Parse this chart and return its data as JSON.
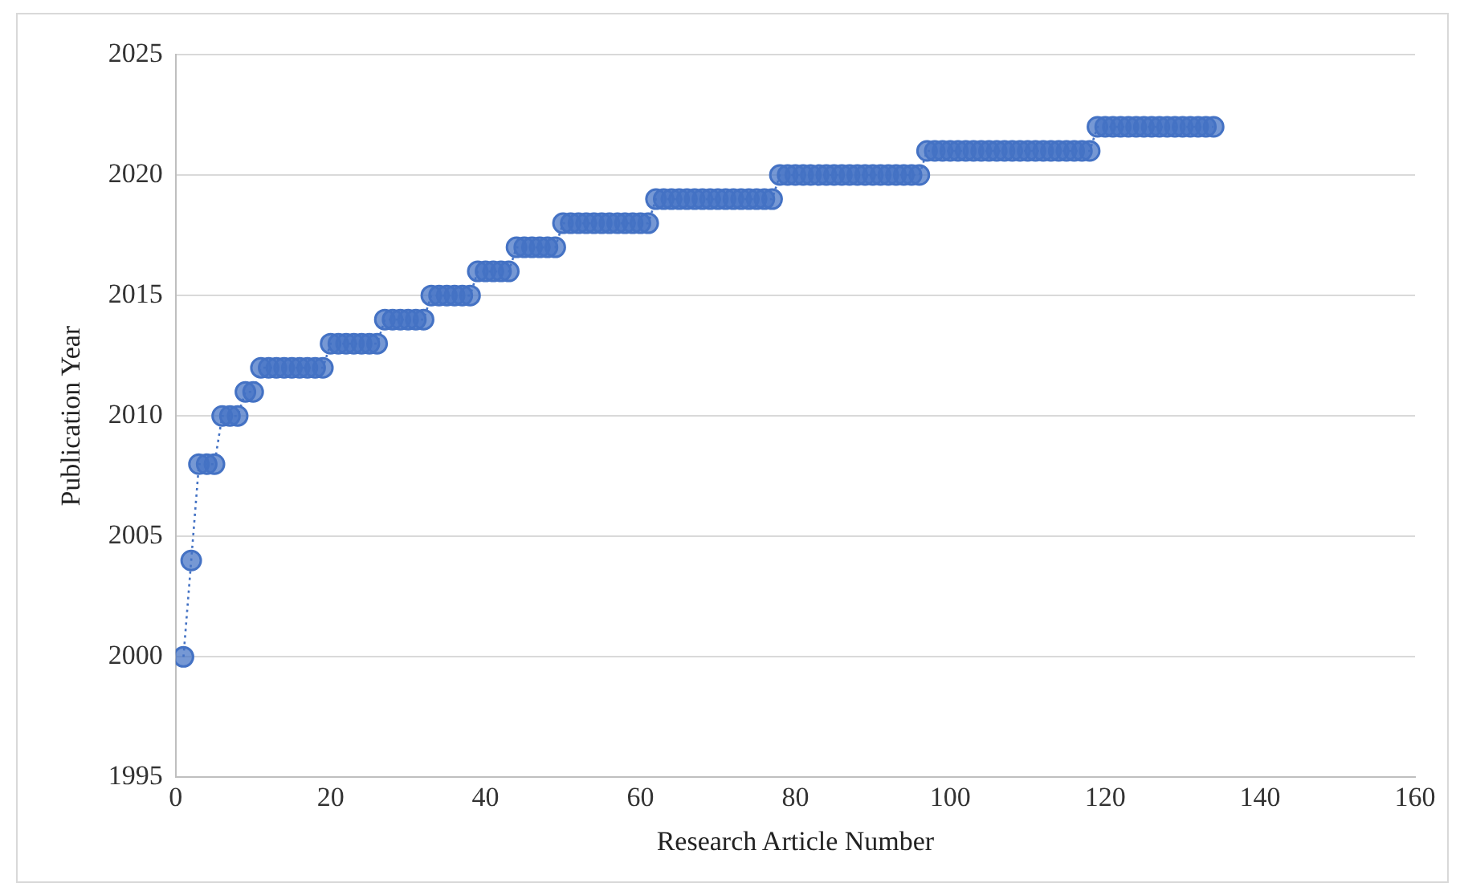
{
  "chart_data": {
    "type": "line",
    "xlabel": "Research Article Number",
    "ylabel": "Publication Year",
    "x": [
      1,
      2,
      3,
      4,
      5,
      6,
      7,
      8,
      9,
      10,
      11,
      12,
      13,
      14,
      15,
      16,
      17,
      18,
      19,
      20,
      21,
      22,
      23,
      24,
      25,
      26,
      27,
      28,
      29,
      30,
      31,
      32,
      33,
      34,
      35,
      36,
      37,
      38,
      39,
      40,
      41,
      42,
      43,
      44,
      45,
      46,
      47,
      48,
      49,
      50,
      51,
      52,
      53,
      54,
      55,
      56,
      57,
      58,
      59,
      60,
      61,
      62,
      63,
      64,
      65,
      66,
      67,
      68,
      69,
      70,
      71,
      72,
      73,
      74,
      75,
      76,
      77,
      78,
      79,
      80,
      81,
      82,
      83,
      84,
      85,
      86,
      87,
      88,
      89,
      90,
      91,
      92,
      93,
      94,
      95,
      96,
      97,
      98,
      99,
      100,
      101,
      102,
      103,
      104,
      105,
      106,
      107,
      108,
      109,
      110,
      111,
      112,
      113,
      114,
      115,
      116,
      117,
      118,
      119,
      120,
      121,
      122,
      123,
      124,
      125,
      126,
      127,
      128,
      129,
      130,
      131,
      132,
      133,
      134
    ],
    "series": [
      {
        "color": "#4472c4",
        "values": [
          2000,
          2004,
          2008,
          2008,
          2008,
          2010,
          2010,
          2010,
          2011,
          2011,
          2012,
          2012,
          2012,
          2012,
          2012,
          2012,
          2012,
          2012,
          2012,
          2013,
          2013,
          2013,
          2013,
          2013,
          2013,
          2013,
          2014,
          2014,
          2014,
          2014,
          2014,
          2014,
          2015,
          2015,
          2015,
          2015,
          2015,
          2015,
          2016,
          2016,
          2016,
          2016,
          2016,
          2017,
          2017,
          2017,
          2017,
          2017,
          2017,
          2018,
          2018,
          2018,
          2018,
          2018,
          2018,
          2018,
          2018,
          2018,
          2018,
          2018,
          2018,
          2019,
          2019,
          2019,
          2019,
          2019,
          2019,
          2019,
          2019,
          2019,
          2019,
          2019,
          2019,
          2019,
          2019,
          2019,
          2019,
          2020,
          2020,
          2020,
          2020,
          2020,
          2020,
          2020,
          2020,
          2020,
          2020,
          2020,
          2020,
          2020,
          2020,
          2020,
          2020,
          2020,
          2020,
          2020,
          2021,
          2021,
          2021,
          2021,
          2021,
          2021,
          2021,
          2021,
          2021,
          2021,
          2021,
          2021,
          2021,
          2021,
          2021,
          2021,
          2021,
          2021,
          2021,
          2021,
          2021,
          2021,
          2022,
          2022,
          2022,
          2022,
          2022,
          2022,
          2022,
          2022,
          2022,
          2022,
          2022,
          2022,
          2022,
          2022,
          2022,
          2022
        ]
      }
    ],
    "xlim": [
      0,
      160
    ],
    "xticks": [
      0,
      20,
      40,
      60,
      80,
      100,
      120,
      140,
      160
    ],
    "ylim": [
      1995,
      2025
    ],
    "yticks": [
      1995,
      2000,
      2005,
      2010,
      2015,
      2020,
      2025
    ],
    "grid": "y",
    "legend": false,
    "marker": "circle",
    "line_style": "dotted"
  }
}
